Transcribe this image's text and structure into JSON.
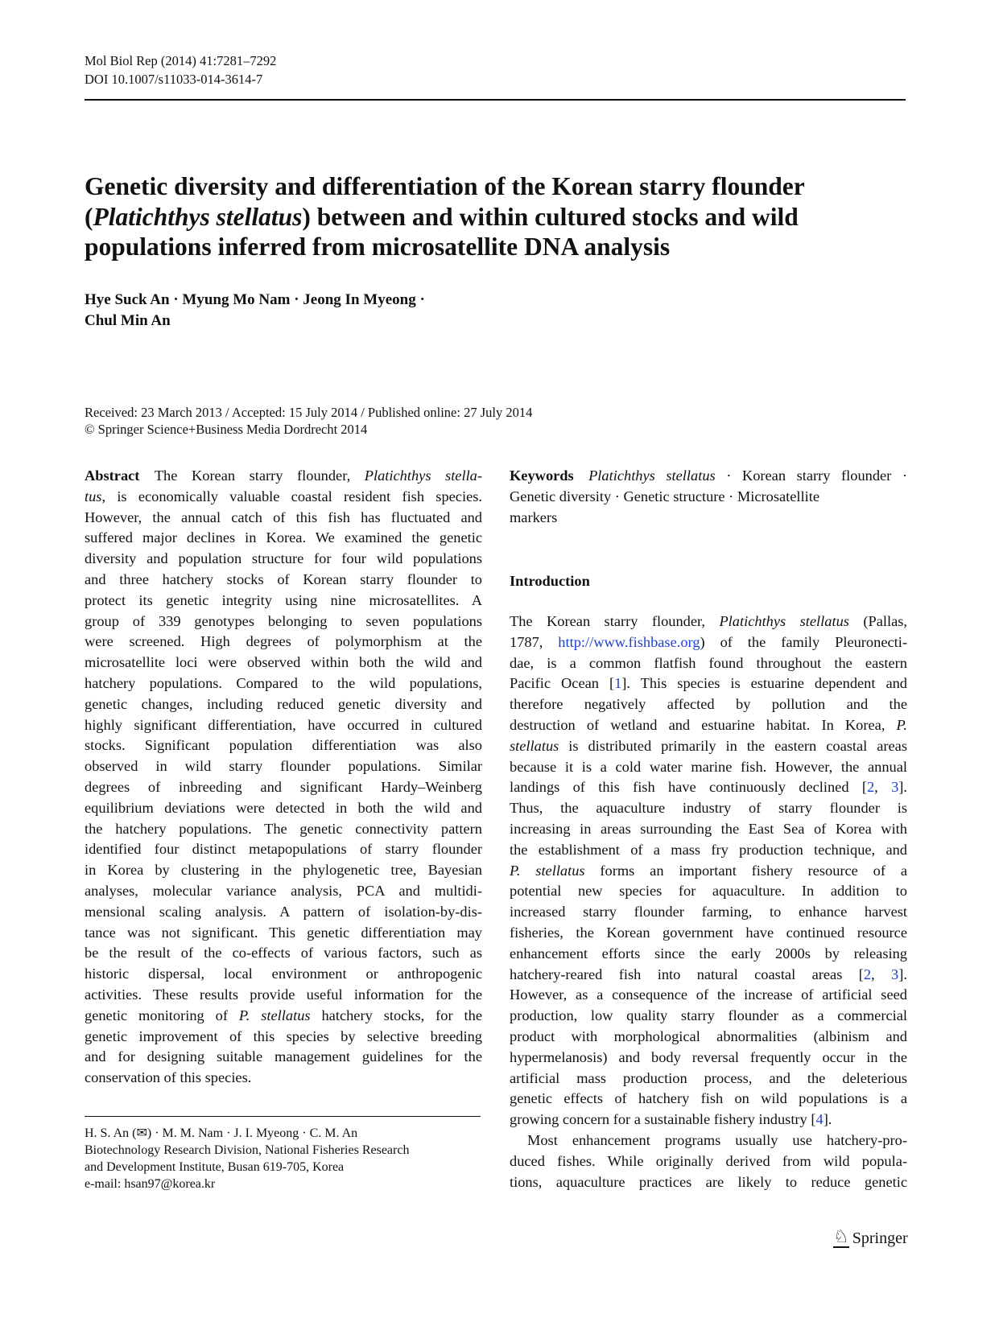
{
  "header": {
    "journal": "Mol Biol Rep (2014) 41:7281–7292",
    "doi": "DOI 10.1007/s11033-014-3614-7"
  },
  "title": [
    [
      {
        "t": "Genetic diversity and differentiation of the Korean starry flounder"
      }
    ],
    [
      {
        "t": "("
      },
      {
        "i": "Platichthys stellatus"
      },
      {
        "t": ") between and within cultured stocks and wild"
      }
    ],
    [
      {
        "t": "populations inferred from microsatellite DNA analysis"
      }
    ]
  ],
  "authors": {
    "line1": "Hye Suck An · Myung Mo Nam · Jeong In Myeong ·",
    "line2": "Chul Min An"
  },
  "dates": {
    "history": "Received: 23 March 2013 / Accepted: 15 July 2014 / Published online: 27 July 2014",
    "copyright": "© Springer Science+Business Media Dordrecht 2014"
  },
  "abstract": [
    [
      {
        "b": "Abstract"
      },
      {
        "t": " The Korean starry flounder, "
      },
      {
        "i": "Platichthys stella-"
      }
    ],
    [
      {
        "i": "tus"
      },
      {
        "t": ", is economically valuable coastal resident fish species."
      }
    ],
    [
      {
        "t": "However, the annual catch of this fish has fluctuated and"
      }
    ],
    [
      {
        "t": "suffered major declines in Korea. We examined the genetic"
      }
    ],
    [
      {
        "t": "diversity and population structure for four wild populations"
      }
    ],
    [
      {
        "t": "and three hatchery stocks of Korean starry flounder to"
      }
    ],
    [
      {
        "t": "protect its genetic integrity using nine microsatellites. A"
      }
    ],
    [
      {
        "t": "group of 339 genotypes belonging to seven populations"
      }
    ],
    [
      {
        "t": "were screened. High degrees of polymorphism at the"
      }
    ],
    [
      {
        "t": "microsatellite loci were observed within both the wild and"
      }
    ],
    [
      {
        "t": "hatchery populations. Compared to the wild populations,"
      }
    ],
    [
      {
        "t": "genetic changes, including reduced genetic diversity and"
      }
    ],
    [
      {
        "t": "highly significant differentiation, have occurred in cultured"
      }
    ],
    [
      {
        "t": "stocks. Significant population differentiation was also"
      }
    ],
    [
      {
        "t": "observed in wild starry flounder populations. Similar"
      }
    ],
    [
      {
        "t": "degrees of inbreeding and significant Hardy–Weinberg"
      }
    ],
    [
      {
        "t": "equilibrium deviations were detected in both the wild and"
      }
    ],
    [
      {
        "t": "the hatchery populations. The genetic connectivity pattern"
      }
    ],
    [
      {
        "t": "identified four distinct metapopulations of starry flounder"
      }
    ],
    [
      {
        "t": "in Korea by clustering in the phylogenetic tree, Bayesian"
      }
    ],
    [
      {
        "t": "analyses, molecular variance analysis, PCA and multidi-"
      }
    ],
    [
      {
        "t": "mensional scaling analysis. A pattern of isolation-by-dis-"
      }
    ],
    [
      {
        "t": "tance was not significant. This genetic differentiation may"
      }
    ],
    [
      {
        "t": "be the result of the co-effects of various factors, such as"
      }
    ],
    [
      {
        "t": "historic dispersal, local environment or anthropogenic"
      }
    ],
    [
      {
        "t": "activities. These results provide useful information for the"
      }
    ],
    [
      {
        "t": "genetic monitoring of "
      },
      {
        "i": "P. stellatus"
      },
      {
        "t": " hatchery stocks, for the"
      }
    ],
    [
      {
        "t": "genetic improvement of this species by selective breeding"
      }
    ],
    [
      {
        "t": "and for designing suitable management guidelines for the"
      }
    ],
    [
      {
        "t": "conservation of this species."
      }
    ]
  ],
  "keywords": [
    [
      {
        "b": "Keywords"
      },
      {
        "t": " "
      },
      {
        "i": "Platichthys stellatus"
      },
      {
        "t": " · Korean starry flounder ·"
      }
    ],
    [
      {
        "t": "Genetic diversity · Genetic structure · Microsatellite"
      }
    ],
    [
      {
        "t": "markers"
      }
    ]
  ],
  "introduction": {
    "heading": "Introduction",
    "para1": [
      [
        {
          "t": "The Korean starry flounder, "
        },
        {
          "i": "Platichthys stellatus"
        },
        {
          "t": " (Pallas,"
        }
      ],
      [
        {
          "t": "1787, "
        },
        {
          "a": "http://www.fishbase.org"
        },
        {
          "t": ") of the family Pleuronecti-"
        }
      ],
      [
        {
          "t": "dae, is a common flatfish found throughout the eastern"
        }
      ],
      [
        {
          "t": "Pacific Ocean ["
        },
        {
          "a": "1"
        },
        {
          "t": "]. This species is estuarine dependent and"
        }
      ],
      [
        {
          "t": "therefore negatively affected by pollution and the"
        }
      ],
      [
        {
          "t": "destruction of wetland and estuarine habitat. In Korea, "
        },
        {
          "i": "P."
        }
      ],
      [
        {
          "i": "stellatus"
        },
        {
          "t": " is distributed primarily in the eastern coastal areas"
        }
      ],
      [
        {
          "t": "because it is a cold water marine fish. However, the annual"
        }
      ],
      [
        {
          "t": "landings of this fish have continuously declined ["
        },
        {
          "a": "2"
        },
        {
          "t": ", "
        },
        {
          "a": "3"
        },
        {
          "t": "]."
        }
      ],
      [
        {
          "t": "Thus, the aquaculture industry of starry flounder is"
        }
      ],
      [
        {
          "t": "increasing in areas surrounding the East Sea of Korea with"
        }
      ],
      [
        {
          "t": "the establishment of a mass fry production technique, and"
        }
      ],
      [
        {
          "i": "P. stellatus"
        },
        {
          "t": " forms an important fishery resource of a"
        }
      ],
      [
        {
          "t": "potential new species for aquaculture. In addition to"
        }
      ],
      [
        {
          "t": "increased starry flounder farming, to enhance harvest"
        }
      ],
      [
        {
          "t": "fisheries, the Korean government have continued resource"
        }
      ],
      [
        {
          "t": "enhancement efforts since the early 2000s by releasing"
        }
      ],
      [
        {
          "t": "hatchery-reared fish into natural coastal areas ["
        },
        {
          "a": "2"
        },
        {
          "t": ", "
        },
        {
          "a": "3"
        },
        {
          "t": "]."
        }
      ],
      [
        {
          "t": "However, as a consequence of the increase of artificial seed"
        }
      ],
      [
        {
          "t": "production, low quality starry flounder as a commercial"
        }
      ],
      [
        {
          "t": "product with morphological abnormalities (albinism and"
        }
      ],
      [
        {
          "t": "hypermelanosis) and body reversal frequently occur in the"
        }
      ],
      [
        {
          "t": "artificial mass production process, and the deleterious"
        }
      ],
      [
        {
          "t": "genetic effects of hatchery fish on wild populations is a"
        }
      ],
      [
        {
          "t": "growing concern for a sustainable fishery industry ["
        },
        {
          "a": "4"
        },
        {
          "t": "]."
        }
      ]
    ],
    "para2": [
      [
        {
          "t": "Most enhancement programs usually use hatchery-pro-"
        }
      ],
      [
        {
          "t": "duced fishes. While originally derived from wild popula-"
        }
      ],
      [
        {
          "t": "tions, aquaculture practices are likely to reduce genetic"
        }
      ]
    ]
  },
  "footnote": {
    "authors": "H. S. An (✉) · M. M. Nam · J. I. Myeong · C. M. An",
    "affiliation1": "Biotechnology Research Division, National Fisheries Research",
    "affiliation2": "and Development Institute, Busan 619-705, Korea",
    "email": "e-mail: hsan97@korea.kr"
  },
  "publisher": {
    "logo_icon": "knight-chess-piece-icon",
    "name": "Springer"
  }
}
